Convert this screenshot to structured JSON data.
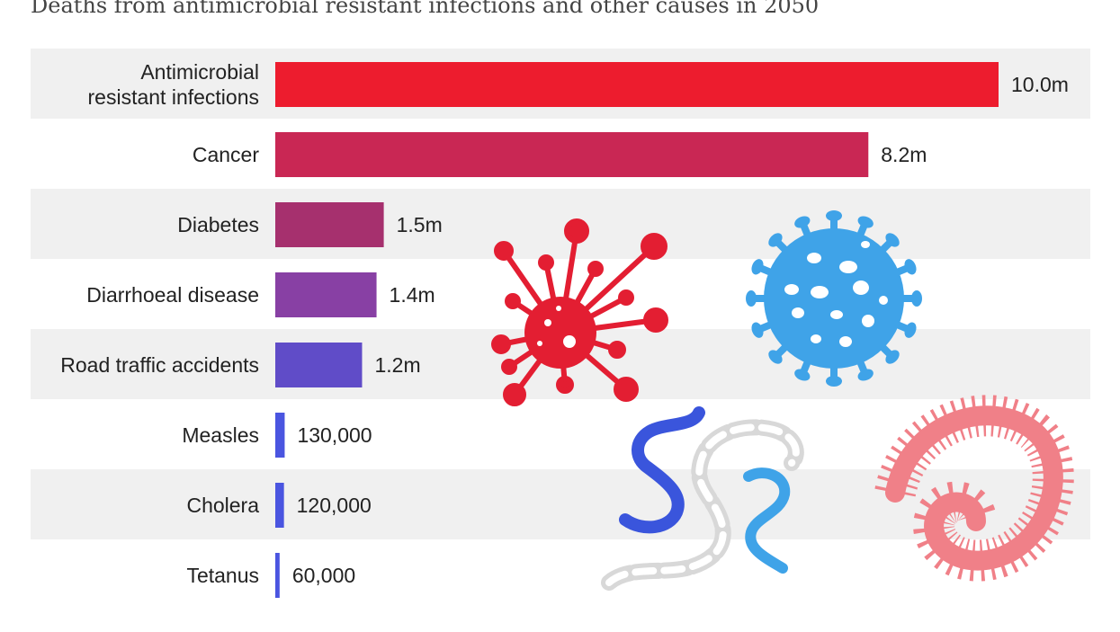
{
  "subtitle": "Deaths from antimicrobial resistant infections and other causes in 2050",
  "chart_data": {
    "type": "bar",
    "orientation": "horizontal",
    "title": "Deaths from antimicrobial resistant infections and other causes in 2050",
    "categories": [
      [
        "Antimicrobial",
        "resistant infections"
      ],
      [
        "Cancer"
      ],
      [
        "Diabetes"
      ],
      [
        "Diarrhoeal disease"
      ],
      [
        "Road traffic accidents"
      ],
      [
        "Measles"
      ],
      [
        "Cholera"
      ],
      [
        "Tetanus"
      ]
    ],
    "values": [
      10000000,
      8200000,
      1500000,
      1400000,
      1200000,
      130000,
      120000,
      60000
    ],
    "value_labels": [
      "10.0m",
      "8.2m",
      "1.5m",
      "1.4m",
      "1.2m",
      "130,000",
      "120,000",
      "60,000"
    ],
    "xlim": [
      0,
      10000000
    ],
    "colors": [
      "#ed1c2e",
      "#c92754",
      "#a6306e",
      "#8840a4",
      "#604cc8",
      "#4a55e0",
      "#4a55e0",
      "#4a55e0"
    ],
    "row_shading": "alternating",
    "legend": "none"
  },
  "decorations": [
    {
      "icon": "red-virus-icon",
      "color": "#e31e32"
    },
    {
      "icon": "blue-coronavirus-icon",
      "color": "#3fa3e8"
    },
    {
      "icon": "blue-spiral-bacterium-icon",
      "color": "#3a55dc"
    },
    {
      "icon": "grey-chain-bacterium-icon",
      "color": "#dddddd"
    },
    {
      "icon": "light-blue-spiral-bacterium-icon",
      "color": "#3fa3e8"
    },
    {
      "icon": "pink-centipede-bacterium-icon",
      "color": "#f08088"
    }
  ]
}
